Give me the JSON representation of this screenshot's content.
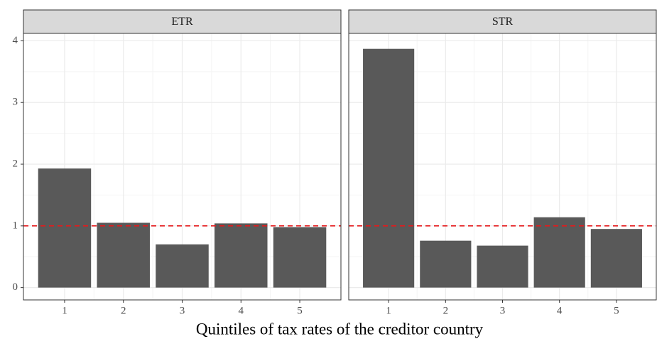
{
  "xlabel": "Quintiles of tax rates of the creditor country",
  "chart_data": [
    {
      "type": "bar",
      "title": "ETR",
      "categories": [
        "1",
        "2",
        "3",
        "4",
        "5"
      ],
      "values": [
        1.93,
        1.05,
        0.7,
        1.04,
        0.98
      ],
      "color": "#595959",
      "ylim": [
        -0.2,
        4.12
      ],
      "yticks": [
        0,
        1,
        2,
        3,
        4
      ],
      "grid": true,
      "reference_line": 1,
      "reference_color": "#e41a1c"
    },
    {
      "type": "bar",
      "title": "STR",
      "categories": [
        "1",
        "2",
        "3",
        "4",
        "5"
      ],
      "values": [
        3.87,
        0.76,
        0.68,
        1.14,
        0.95
      ],
      "color": "#595959",
      "ylim": [
        -0.2,
        4.12
      ],
      "yticks": [
        0,
        1,
        2,
        3,
        4
      ],
      "grid": true,
      "reference_line": 1,
      "reference_color": "#e41a1c"
    }
  ]
}
